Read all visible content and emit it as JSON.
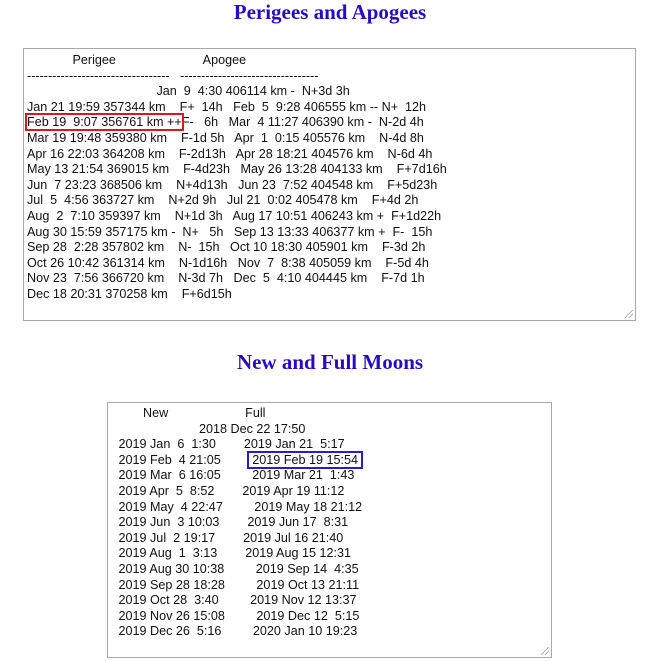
{
  "perigee_section": {
    "title": "Perigees and Apogees",
    "lines": [
      "             Perigee                         Apogee",
      "----------------------------------   ---------------------------------",
      "                                     Jan  9  4:30 406114 km -  N+3d 3h",
      "Jan 21 19:59 357344 km    F+  14h   Feb  5  9:28 406555 km -- N+  12h",
      "",
      "Mar 19 19:48 359380 km    F-1d 5h   Apr  1  0:15 405576 km    N-4d 8h",
      "Apr 16 22:03 364208 km    F-2d13h   Apr 28 18:21 404576 km    N-6d 4h",
      "May 13 21:54 369015 km    F-4d23h   May 26 13:28 404133 km    F+7d16h",
      "Jun  7 23:23 368506 km    N+4d13h   Jun 23  7:52 404548 km    F+5d23h",
      "Jul  5  4:56 363727 km    N+2d 9h   Jul 21  0:02 405478 km    F+4d 2h",
      "Aug  2  7:10 359397 km    N+1d 3h   Aug 17 10:51 406243 km +  F+1d22h",
      "Aug 30 15:59 357175 km -  N+   5h   Sep 13 13:33 406377 km +  F-  15h",
      "Sep 28  2:28 357802 km    N-  15h   Oct 10 18:30 405901 km    F-3d 2h",
      "Oct 26 10:42 361314 km    N-1d16h   Nov  7  8:38 405059 km    F-5d 4h",
      "Nov 23  7:56 366720 km    N-3d 7h   Dec  5  4:10 404445 km    F-7d 1h",
      "Dec 18 20:31 370258 km    F+6d15h"
    ],
    "highlighted_line": {
      "highlight": "Feb 19  9:07 356761 km ++",
      "rest": "F-   6h   Mar  4 11:27 406390 km -  N-2d 4h"
    },
    "highlight_color": "#e0141a"
  },
  "moons_section": {
    "title": "New and Full Moons",
    "lines": [
      "          New                      Full",
      "                          2018 Dec 22 17:50",
      "   2019 Jan  6  1:30        2019 Jan 21  5:17",
      "",
      "   2019 Mar  6 16:05         2019 Mar 21  1:43",
      "   2019 Apr  5  8:52        2019 Apr 19 11:12",
      "   2019 May  4 22:47         2019 May 18 21:12",
      "   2019 Jun  3 10:03        2019 Jun 17  8:31",
      "   2019 Jul  2 19:17        2019 Jul 16 21:40",
      "   2019 Aug  1  3:13        2019 Aug 15 12:31",
      "   2019 Aug 30 10:38         2019 Sep 14  4:35",
      "   2019 Sep 28 18:28         2019 Oct 13 21:11",
      "   2019 Oct 28  3:40         2019 Nov 12 13:37",
      "   2019 Nov 26 15:08         2019 Dec 12  5:15",
      "   2019 Dec 26  5:16         2020 Jan 10 19:23"
    ],
    "highlighted_line": {
      "prefix": "   2019 Feb  4 21:05        ",
      "highlight": " 2019 Feb 19 15:54 "
    },
    "highlight_color": "#2a1ad8"
  }
}
